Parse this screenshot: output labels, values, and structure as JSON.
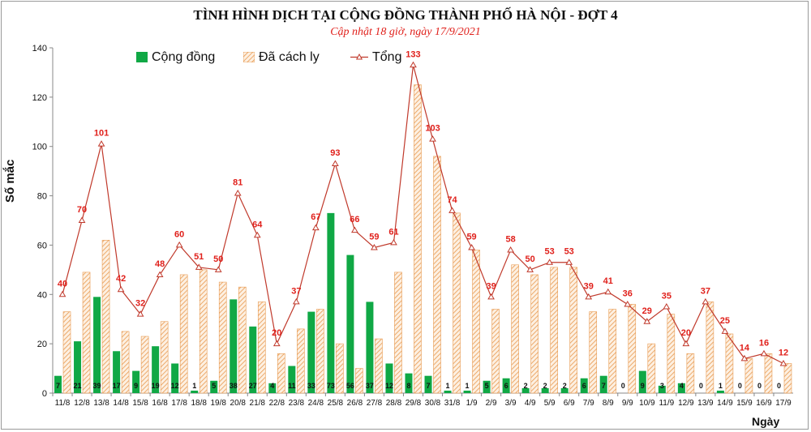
{
  "chart_data": {
    "type": "bar",
    "title": "TÌNH HÌNH DỊCH TẠI CỘNG ĐỒNG THÀNH PHỐ HÀ NỘI - ĐỢT 4",
    "subtitle": "Cập nhật 18 giờ, ngày 17/9/2021",
    "ylabel": "Số mắc",
    "xlabel": "Ngày",
    "ylim": [
      0,
      140
    ],
    "yticks": [
      0,
      20,
      40,
      60,
      80,
      100,
      120,
      140
    ],
    "grid": false,
    "legend_position": "top-left",
    "categories": [
      "11/8",
      "12/8",
      "13/8",
      "14/8",
      "15/8",
      "16/8",
      "17/8",
      "18/8",
      "19/8",
      "20/8",
      "21/8",
      "22/8",
      "23/8",
      "24/8",
      "25/8",
      "26/8",
      "27/8",
      "28/8",
      "29/8",
      "30/8",
      "31/8",
      "1/9",
      "2/9",
      "3/9",
      "4/9",
      "5/9",
      "6/9",
      "7/9",
      "8/9",
      "9/9",
      "10/9",
      "11/9",
      "12/9",
      "13/9",
      "14/9",
      "15/9",
      "16/9",
      "17/9"
    ],
    "series": [
      {
        "name": "Cộng đồng",
        "type": "bar",
        "color": "#10a845",
        "values": [
          7,
          21,
          39,
          17,
          9,
          19,
          12,
          1,
          5,
          38,
          27,
          4,
          11,
          33,
          73,
          56,
          37,
          12,
          8,
          7,
          1,
          1,
          5,
          6,
          2,
          2,
          2,
          6,
          7,
          0,
          9,
          3,
          4,
          0,
          1,
          0,
          0,
          0
        ]
      },
      {
        "name": "Đã cách ly",
        "type": "bar",
        "color": "#e89a50",
        "values": [
          33,
          49,
          62,
          25,
          23,
          29,
          48,
          50,
          45,
          43,
          37,
          16,
          26,
          34,
          20,
          10,
          22,
          49,
          125,
          96,
          73,
          58,
          34,
          52,
          48,
          51,
          51,
          33,
          34,
          36,
          20,
          32,
          16,
          37,
          24,
          14,
          16,
          12
        ]
      },
      {
        "name": "Tổng",
        "type": "line",
        "color": "#c0392b",
        "values": [
          40,
          70,
          101,
          42,
          32,
          48,
          60,
          51,
          50,
          81,
          64,
          20,
          37,
          67,
          93,
          66,
          59,
          61,
          133,
          103,
          74,
          59,
          39,
          58,
          50,
          53,
          53,
          39,
          41,
          36,
          29,
          35,
          20,
          37,
          25,
          14,
          16,
          12
        ]
      }
    ]
  }
}
